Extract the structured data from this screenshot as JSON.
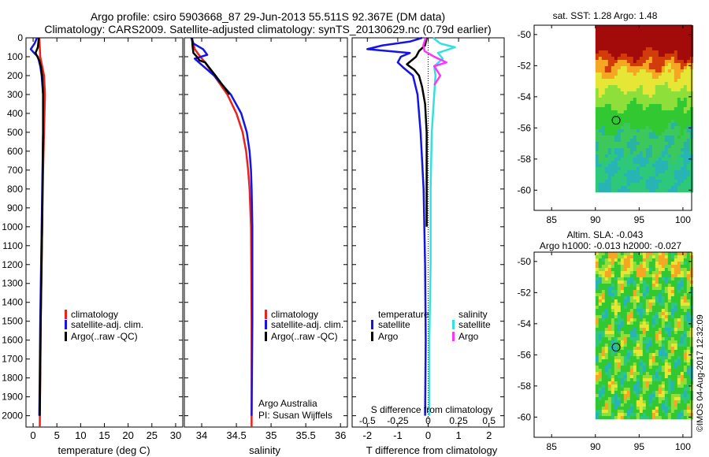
{
  "header": {
    "line1": "Argo profile: csiro 5903668_87 29-Jun-2013 55.511S 92.367E (DM data)",
    "line2": "Climatology: CARS2009. Satellite-adjusted climatology: synTS_20130629.nc (0.79d earlier)"
  },
  "colors": {
    "climatology": "#e8231c",
    "satellite": "#1414e6",
    "argo": "#000000",
    "sal_satellite": "#33e0e0",
    "sal_argo": "#ff33ff"
  },
  "legend": {
    "climatology": "climatology",
    "satellite_adj": "satellite-adj. clim.",
    "argo_raw": "Argo(..raw -QC)",
    "temperature_head": "temperature",
    "salinity_head": "salinity",
    "satellite": "satellite",
    "argo": "Argo"
  },
  "credits": {
    "org": "Argo Australia",
    "pi": "PI: Susan Wijffels",
    "stamp": "©IMOS 04-Aug-2017 12:32:09"
  },
  "chart_data": [
    {
      "type": "line",
      "id": "temperature",
      "xlabel": "temperature (deg C)",
      "ylabel": "",
      "xlim": [
        -1.5,
        31.5
      ],
      "ylim": [
        2060,
        0
      ],
      "xticks": [
        0,
        5,
        10,
        15,
        20,
        25,
        30
      ],
      "yticks": [
        0,
        100,
        200,
        300,
        400,
        500,
        600,
        700,
        800,
        900,
        1000,
        1100,
        1200,
        1300,
        1400,
        1500,
        1600,
        1700,
        1800,
        1900,
        2000
      ],
      "series": [
        {
          "name": "climatology",
          "color": "#e8231c",
          "depth": [
            0,
            100,
            150,
            200,
            300,
            400,
            500,
            700,
            1000,
            1500,
            2060
          ],
          "values": [
            1.3,
            1.5,
            1.9,
            2.3,
            2.5,
            2.4,
            2.3,
            2.1,
            1.9,
            1.6,
            1.4
          ]
        },
        {
          "name": "satellite-adj. clim.",
          "color": "#1414e6",
          "depth": [
            0,
            30,
            60,
            80,
            100,
            150,
            200,
            300,
            500,
            1000,
            1500,
            2000
          ],
          "values": [
            0.8,
            0.3,
            -0.5,
            0.2,
            1.0,
            1.5,
            1.8,
            2.1,
            2.1,
            1.8,
            1.5,
            1.3
          ]
        },
        {
          "name": "Argo(..raw -QC)",
          "color": "#000000",
          "depth": [
            0,
            50,
            80,
            100,
            120,
            150,
            200,
            300,
            500,
            1000,
            1500,
            2000
          ],
          "values": [
            1.2,
            1.0,
            0.5,
            0.9,
            1.3,
            1.6,
            1.9,
            2.1,
            2.1,
            1.9,
            1.6,
            1.4
          ]
        }
      ]
    },
    {
      "type": "line",
      "id": "salinity",
      "xlabel": "salinity",
      "ylabel": "",
      "xlim": [
        33.75,
        36.1
      ],
      "ylim": [
        2060,
        0
      ],
      "xticks": [
        34,
        34.5,
        35,
        35.5,
        36
      ],
      "xticklabels": [
        "34",
        "34.5",
        "35",
        "35.5",
        "36"
      ],
      "series": [
        {
          "name": "climatology",
          "color": "#e8231c",
          "depth": [
            0,
            60,
            100,
            130,
            200,
            300,
            400,
            500,
            600,
            700,
            800,
            900,
            1000,
            1500,
            2060
          ],
          "values": [
            33.86,
            33.9,
            33.98,
            34.05,
            34.18,
            34.37,
            34.5,
            34.59,
            34.64,
            34.67,
            34.69,
            34.7,
            34.71,
            34.72,
            34.72
          ]
        },
        {
          "name": "satellite-adj. clim.",
          "color": "#1414e6",
          "depth": [
            0,
            30,
            60,
            90,
            110,
            130,
            200,
            300,
            400,
            500,
            600,
            700,
            800,
            1000,
            1500,
            2000
          ],
          "values": [
            33.85,
            33.88,
            34.02,
            34.08,
            33.9,
            33.96,
            34.18,
            34.42,
            34.57,
            34.65,
            34.69,
            34.71,
            34.72,
            34.73,
            34.73,
            34.72
          ]
        },
        {
          "name": "Argo(..raw -QC)",
          "color": "#000000",
          "depth": [
            0,
            50,
            80,
            100,
            120,
            130,
            200,
            300
          ],
          "values": [
            33.86,
            33.87,
            33.88,
            33.93,
            33.97,
            34.05,
            34.2,
            34.4
          ]
        }
      ]
    },
    {
      "type": "line",
      "id": "differences",
      "xlabel": "T difference from climatology",
      "x2label": "S difference from climatology",
      "xlim": [
        -2.5,
        2.5
      ],
      "x2lim": [
        -0.625,
        0.625
      ],
      "ylim": [
        2060,
        0
      ],
      "xticks": [
        -2,
        -1,
        0,
        1,
        2
      ],
      "x2ticks": [
        -0.5,
        -0.25,
        0,
        0.25,
        0.5
      ],
      "x2ticklabels": [
        "-0.5",
        "-0.25",
        "0",
        "0.25",
        "0.5"
      ],
      "series": [
        {
          "name": "temperature satellite",
          "axis": "T",
          "color": "#1414e6",
          "depth": [
            0,
            20,
            40,
            60,
            80,
            100,
            130,
            160,
            200,
            300,
            500,
            800,
            1200,
            1600,
            2000
          ],
          "values": [
            -0.2,
            -0.6,
            -1.5,
            -2.0,
            -0.6,
            -0.9,
            -1.0,
            -0.8,
            -0.5,
            -0.35,
            -0.25,
            -0.15,
            -0.1,
            -0.08,
            -0.1
          ]
        },
        {
          "name": "temperature Argo",
          "axis": "T",
          "color": "#000000",
          "depth": [
            0,
            40,
            70,
            100,
            140,
            170,
            200,
            260,
            350,
            500,
            800,
            1000
          ],
          "values": [
            -0.05,
            -0.1,
            -0.3,
            -0.4,
            -0.7,
            -0.45,
            -0.3,
            -0.2,
            -0.1,
            -0.05,
            -0.05,
            -0.05
          ]
        },
        {
          "name": "salinity satellite",
          "axis": "S",
          "color": "#33e0e0",
          "depth": [
            0,
            30,
            50,
            80,
            110,
            150,
            200,
            300,
            500,
            800,
            1200,
            1600,
            2000
          ],
          "values": [
            0.04,
            0.1,
            0.22,
            0.08,
            0.12,
            0.05,
            0.06,
            0.05,
            0.03,
            0.02,
            0.02,
            0.01,
            0.01
          ]
        },
        {
          "name": "salinity Argo",
          "axis": "S",
          "color": "#ff33ff",
          "depth": [
            0,
            40,
            70,
            100,
            130,
            150,
            200,
            250
          ],
          "values": [
            -0.02,
            -0.04,
            -0.03,
            0.05,
            0.15,
            0.05,
            0.1,
            0.05
          ]
        }
      ]
    },
    {
      "type": "heatmap",
      "id": "sst_map",
      "title": "sat. SST: 1.28 Argo: 1.48",
      "xlim": [
        83,
        101
      ],
      "ylim": [
        -61.3,
        -49.4
      ],
      "xticks": [
        85,
        90,
        95,
        100
      ],
      "yticks": [
        -50,
        -52,
        -54,
        -56,
        -58,
        -60
      ],
      "yticklabels": [
        "-50",
        "-52",
        "-54",
        "-56",
        "-58",
        "-60"
      ],
      "region_lon": [
        90,
        101
      ],
      "region_lat": [
        -60,
        -49.4
      ],
      "marker": {
        "lon": 92.367,
        "lat": -55.511
      }
    },
    {
      "type": "heatmap",
      "id": "sla_map",
      "title": "Altim. SLA: -0.043",
      "subtitle": "Argo h1000: -0.013 h2000: -0.027",
      "xlim": [
        83,
        101
      ],
      "ylim": [
        -61.3,
        -49.4
      ],
      "xticks": [
        85,
        90,
        95,
        100
      ],
      "yticks": [
        -50,
        -52,
        -54,
        -56,
        -58,
        -60
      ],
      "yticklabels": [
        "-50",
        "-52",
        "-54",
        "-56",
        "-58",
        "-60"
      ],
      "region_lon": [
        90,
        101
      ],
      "region_lat": [
        -60,
        -49.4
      ],
      "marker": {
        "lon": 92.367,
        "lat": -55.511
      }
    }
  ]
}
